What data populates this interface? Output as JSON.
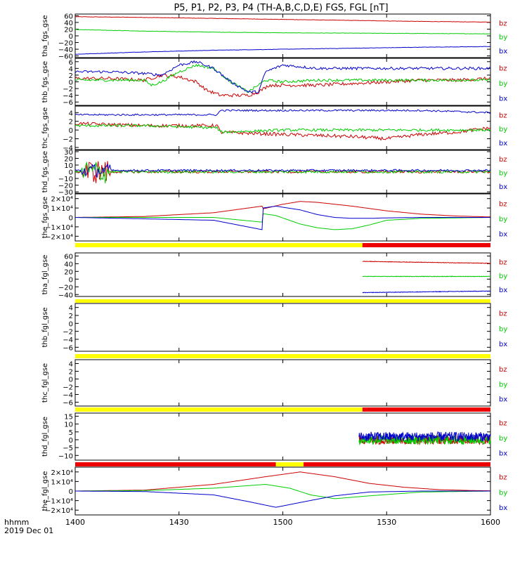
{
  "title": "P5, P1, P2, P3, P4 (TH-A,B,C,D,E) FGS, FGL [nT]",
  "footer": {
    "axis_label": "hhmm",
    "date": "2019 Dec 01"
  },
  "colors": {
    "bz": "#cc0000",
    "by": "#00cc00",
    "bx": "#0000cc",
    "bar_yellow": "#ffff00",
    "bar_red": "#ee0000"
  },
  "chart_data": [
    {
      "type": "line",
      "ylabel": "tha_fgs_gse",
      "ylim": [
        -65,
        65
      ],
      "yticks": [
        -60,
        -40,
        -20,
        0,
        20,
        40,
        60
      ],
      "yticklabels": [
        "−60",
        "−40",
        "−20",
        "0",
        "20",
        "40",
        "60"
      ],
      "series": [
        {
          "name": "bz",
          "noise": 0.5,
          "x": [
            0,
            20,
            40,
            60,
            80,
            100,
            120
          ],
          "values": [
            57,
            55,
            52,
            49,
            46,
            43,
            41
          ]
        },
        {
          "name": "by",
          "noise": 0.5,
          "x": [
            0,
            20,
            40,
            60,
            80,
            100,
            120
          ],
          "values": [
            19,
            14,
            11,
            9,
            8,
            7,
            6
          ]
        },
        {
          "name": "bx",
          "noise": 0.5,
          "x": [
            0,
            20,
            40,
            60,
            80,
            100,
            120
          ],
          "values": [
            -55,
            -48,
            -43,
            -40,
            -37,
            -34,
            -32
          ]
        }
      ]
    },
    {
      "type": "line",
      "ylabel": "thb_fgs_gse",
      "ylim": [
        -7,
        7
      ],
      "yticks": [
        -6,
        -4,
        -2,
        0,
        2,
        4,
        6
      ],
      "yticklabels": [
        "−6",
        "−4",
        "−2",
        "0",
        "2",
        "4",
        "6"
      ],
      "series": [
        {
          "name": "bz",
          "noise": 0.5,
          "x": [
            0,
            10,
            20,
            25,
            30,
            35,
            38,
            42,
            46,
            50,
            53,
            56,
            60,
            70,
            80,
            90,
            100,
            110,
            120
          ],
          "values": [
            1,
            1,
            0.5,
            2,
            1.5,
            0,
            -2.5,
            -4,
            -4,
            -4,
            -3,
            -1,
            -1,
            -1,
            -0.5,
            0,
            0.5,
            0.5,
            1
          ]
        },
        {
          "name": "by",
          "noise": 0.4,
          "x": [
            0,
            10,
            20,
            22,
            25,
            30,
            35,
            40,
            45,
            50,
            55,
            60,
            70,
            80,
            90,
            100,
            110,
            120
          ],
          "values": [
            0.5,
            0.5,
            0.5,
            -1,
            0,
            3,
            5,
            4,
            0,
            -3,
            0.5,
            0,
            0.5,
            0.5,
            0.5,
            0.5,
            0.5,
            0.5
          ]
        },
        {
          "name": "bx",
          "noise": 0.4,
          "x": [
            0,
            10,
            20,
            25,
            30,
            35,
            40,
            45,
            50,
            53,
            55,
            60,
            70,
            80,
            90,
            100,
            110,
            120
          ],
          "values": [
            3,
            3,
            2.5,
            2,
            5,
            6,
            4,
            0,
            -3,
            -3,
            3,
            5,
            4,
            4,
            4,
            4,
            4,
            4
          ]
        }
      ]
    },
    {
      "type": "line",
      "ylabel": "thc_fgs_gse",
      "ylim": [
        -4.5,
        5.5
      ],
      "yticks": [
        -4,
        -2,
        0,
        2,
        4
      ],
      "yticklabels": [
        "−4",
        "−2",
        "0",
        "2",
        "4"
      ],
      "series": [
        {
          "name": "bz",
          "noise": 0.4,
          "x": [
            0,
            20,
            41,
            42,
            60,
            80,
            90,
            100,
            110,
            120
          ],
          "values": [
            1.5,
            1,
            1,
            -0.5,
            -1,
            -1.5,
            -2,
            -1,
            -0.5,
            0.5
          ]
        },
        {
          "name": "by",
          "noise": 0.3,
          "x": [
            0,
            20,
            41,
            42,
            60,
            80,
            100,
            120
          ],
          "values": [
            1,
            1,
            0.5,
            -0.5,
            0,
            0,
            0,
            0
          ]
        },
        {
          "name": "bx",
          "noise": 0.2,
          "x": [
            0,
            20,
            41,
            42,
            60,
            80,
            100,
            120
          ],
          "values": [
            3.5,
            3.5,
            3.5,
            4.5,
            4.5,
            4.5,
            4.5,
            4
          ]
        }
      ]
    },
    {
      "type": "line",
      "ylabel": "thd_fgs_gse",
      "ylim": [
        -32,
        32
      ],
      "yticks": [
        -30,
        -20,
        -10,
        0,
        10,
        20,
        30
      ],
      "yticklabels": [
        "−30",
        "−20",
        "−10",
        "0",
        "10",
        "20",
        "30"
      ],
      "series": [
        {
          "name": "bz",
          "noise": 2,
          "burst": [
            2,
            10,
            18
          ],
          "x": [
            0,
            120
          ],
          "values": [
            0,
            0
          ]
        },
        {
          "name": "by",
          "noise": 2,
          "burst": [
            2,
            10,
            18
          ],
          "x": [
            0,
            120
          ],
          "values": [
            0,
            0
          ]
        },
        {
          "name": "bx",
          "noise": 1.5,
          "burst": [
            2,
            10,
            10
          ],
          "x": [
            0,
            120
          ],
          "values": [
            2,
            2
          ]
        }
      ]
    },
    {
      "type": "line",
      "ylabel": "the_fgs_gse",
      "ylim": [
        -25000,
        25000
      ],
      "yticks": [
        -20000,
        -10000,
        0,
        10000,
        20000
      ],
      "yticklabels": [
        "−2×10⁴",
        "−1×10⁴",
        "0",
        "1×10⁴",
        "2×10⁴"
      ],
      "series": [
        {
          "name": "bz",
          "noise": 0,
          "x": [
            0,
            20,
            40,
            54,
            54.2,
            60,
            65,
            70,
            80,
            90,
            100,
            110,
            120
          ],
          "values": [
            0,
            1000,
            5000,
            12000,
            9000,
            14000,
            17000,
            16000,
            12000,
            7000,
            3500,
            1500,
            500
          ]
        },
        {
          "name": "by",
          "noise": 0,
          "x": [
            0,
            40,
            54,
            54.2,
            58,
            65,
            70,
            75,
            80,
            85,
            90,
            100,
            120
          ],
          "values": [
            0,
            0,
            -5000,
            4000,
            2000,
            -7000,
            -11000,
            -13000,
            -12000,
            -8000,
            -3000,
            -1000,
            0
          ]
        },
        {
          "name": "bx",
          "noise": 0,
          "x": [
            0,
            40,
            54,
            54.2,
            58,
            65,
            70,
            75,
            80,
            85,
            90,
            100,
            120
          ],
          "values": [
            0,
            -3000,
            -13000,
            10000,
            12000,
            8000,
            3000,
            0,
            -1000,
            -1000,
            -500,
            0,
            0
          ]
        }
      ]
    },
    {
      "type": "line",
      "ylabel": "tha_fgl_gse",
      "ylim": [
        -45,
        68
      ],
      "yticks": [
        -40,
        -20,
        0,
        20,
        40,
        60
      ],
      "yticklabels": [
        "−40",
        "−20",
        "0",
        "20",
        "40",
        "60"
      ],
      "series": [
        {
          "name": "bz",
          "noise": 0.6,
          "x": [
            83,
            120
          ],
          "values": [
            46,
            41
          ]
        },
        {
          "name": "by",
          "noise": 0.6,
          "x": [
            83,
            120
          ],
          "values": [
            7,
            7
          ]
        },
        {
          "name": "bx",
          "noise": 0.6,
          "x": [
            83,
            120
          ],
          "values": [
            -35,
            -31
          ]
        }
      ]
    },
    {
      "type": "line",
      "ylabel": "thb_fgl_gse",
      "ylim": [
        -7,
        5
      ],
      "yticks": [
        -6,
        -4,
        -2,
        0,
        2,
        4
      ],
      "yticklabels": [
        "−6",
        "−4",
        "−2",
        "0",
        "2",
        "4"
      ],
      "series": []
    },
    {
      "type": "line",
      "ylabel": "thc_fgl_gse",
      "ylim": [
        -7,
        5
      ],
      "yticks": [
        -6,
        -4,
        -2,
        0,
        2,
        4
      ],
      "yticklabels": [
        "−6",
        "−4",
        "−2",
        "0",
        "2",
        "4"
      ],
      "series": []
    },
    {
      "type": "line",
      "ylabel": "thd_fgl_gse",
      "ylim": [
        -13,
        17
      ],
      "yticks": [
        -10,
        -5,
        0,
        5,
        10,
        15
      ],
      "yticklabels": [
        "−10",
        "−5",
        "0",
        "5",
        "10",
        "15"
      ],
      "series": [
        {
          "name": "bz",
          "noise": 3,
          "x": [
            82,
            120
          ],
          "values": [
            0,
            0
          ]
        },
        {
          "name": "by",
          "noise": 3,
          "x": [
            82,
            120
          ],
          "values": [
            0,
            0
          ]
        },
        {
          "name": "bx",
          "noise": 3,
          "x": [
            82,
            120
          ],
          "values": [
            2,
            2
          ]
        }
      ]
    },
    {
      "type": "line",
      "ylabel": "the_fgl_gse",
      "ylim": [
        -25000,
        25000
      ],
      "yticks": [
        -20000,
        -10000,
        0,
        10000,
        20000
      ],
      "yticklabels": [
        "−2×10⁴",
        "−1×10⁴",
        "0",
        "1×10⁴",
        "2×10⁴"
      ],
      "series": [
        {
          "name": "bz",
          "noise": 0,
          "x": [
            0,
            20,
            40,
            55,
            65,
            75,
            85,
            95,
            105,
            115,
            120
          ],
          "values": [
            0,
            1000,
            7000,
            15000,
            20000,
            15000,
            8000,
            4000,
            1500,
            500,
            300
          ]
        },
        {
          "name": "by",
          "noise": 0,
          "x": [
            0,
            20,
            40,
            55,
            62,
            68,
            75,
            85,
            100,
            120
          ],
          "values": [
            0,
            500,
            3000,
            7000,
            3000,
            -4000,
            -8000,
            -5000,
            -1000,
            0
          ]
        },
        {
          "name": "bx",
          "noise": 0,
          "x": [
            0,
            20,
            40,
            50,
            58,
            65,
            75,
            85,
            100,
            120
          ],
          "values": [
            0,
            -500,
            -4000,
            -11000,
            -17000,
            -12000,
            -5000,
            -1000,
            0,
            0
          ]
        }
      ]
    }
  ],
  "x_axis": {
    "ticks": [
      0,
      30,
      60,
      90,
      120
    ],
    "labels": [
      "1400",
      "1430",
      "1500",
      "1530",
      "1600"
    ]
  },
  "status_bars": [
    {
      "segments": [
        {
          "from": 0,
          "to": 83,
          "color": "yellow"
        },
        {
          "from": 83,
          "to": 120,
          "color": "red"
        }
      ]
    },
    {
      "segments": [
        {
          "from": 0,
          "to": 120,
          "color": "yellow"
        }
      ]
    },
    {
      "segments": [
        {
          "from": 0,
          "to": 120,
          "color": "yellow"
        }
      ]
    },
    {
      "segments": [
        {
          "from": 0,
          "to": 83,
          "color": "yellow"
        },
        {
          "from": 83,
          "to": 120,
          "color": "red"
        }
      ]
    },
    {
      "segments": [
        {
          "from": 0,
          "to": 58,
          "color": "red"
        },
        {
          "from": 58,
          "to": 66,
          "color": "yellow"
        },
        {
          "from": 66,
          "to": 120,
          "color": "red"
        }
      ]
    }
  ]
}
